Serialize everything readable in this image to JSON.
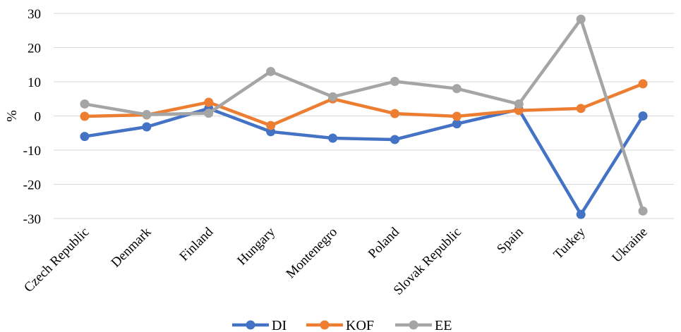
{
  "chart_data": {
    "type": "line",
    "title": "",
    "xlabel": "",
    "ylabel": "%",
    "ylim": [
      -30,
      30
    ],
    "yticks": [
      -30,
      -20,
      -10,
      0,
      10,
      20,
      30
    ],
    "grid": true,
    "legend_position": "bottom",
    "categories": [
      "Czech Republic",
      "Denmark",
      "Finland",
      "Hungary",
      "Montenegro",
      "Poland",
      "Slovak Republic",
      "Spain",
      "Turkey",
      "Ukraine"
    ],
    "series": [
      {
        "name": "DI",
        "color": "#4472C4",
        "values": [
          -6,
          -3.2,
          2.2,
          -4.6,
          -6.5,
          -6.9,
          -2.3,
          1.9,
          -28.8,
          0
        ]
      },
      {
        "name": "KOF",
        "color": "#ED7D31",
        "values": [
          -0.1,
          0.3,
          4,
          -2.8,
          5,
          0.7,
          -0.1,
          1.6,
          2.2,
          9.4
        ]
      },
      {
        "name": "EE",
        "color": "#A5A5A5",
        "values": [
          3.5,
          0.4,
          0.8,
          13,
          5.6,
          10.1,
          8,
          3.5,
          28.3,
          -27.8
        ]
      }
    ]
  }
}
